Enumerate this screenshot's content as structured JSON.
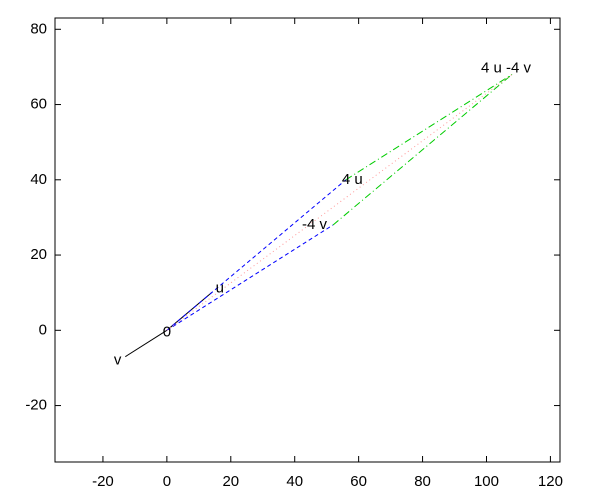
{
  "chart_data": {
    "type": "vector",
    "points": [
      {
        "label": "0",
        "x": 0,
        "y": 0
      },
      {
        "label": "u",
        "x": 14,
        "y": 10
      },
      {
        "label": "v",
        "x": -13,
        "y": -7
      },
      {
        "label": "4 u",
        "x": 56,
        "y": 40
      },
      {
        "label": "-4 v",
        "x": 52,
        "y": 28
      },
      {
        "label": "4 u -4 v",
        "x": 108,
        "y": 68
      }
    ],
    "segments": [
      {
        "from": 0,
        "to": 1,
        "color": "#000000",
        "dash": "solid"
      },
      {
        "from": 0,
        "to": 2,
        "color": "#000000",
        "dash": "solid"
      },
      {
        "from": 0,
        "to": 3,
        "color": "#0000ff",
        "dash": "dashed"
      },
      {
        "from": 0,
        "to": 4,
        "color": "#0000ff",
        "dash": "dashed"
      },
      {
        "from": 3,
        "to": 5,
        "color": "#00cc00",
        "dash": "dashdot"
      },
      {
        "from": 4,
        "to": 5,
        "color": "#00cc00",
        "dash": "dashdot"
      },
      {
        "from": 0,
        "to": 5,
        "color": "#ff9999",
        "dash": "dotted"
      }
    ],
    "xlim": [
      -35,
      123
    ],
    "ylim": [
      -35,
      83
    ],
    "xticks": [
      -20,
      0,
      20,
      40,
      60,
      80,
      100,
      120
    ],
    "yticks": [
      -20,
      0,
      20,
      40,
      60,
      80
    ],
    "grid": false
  }
}
